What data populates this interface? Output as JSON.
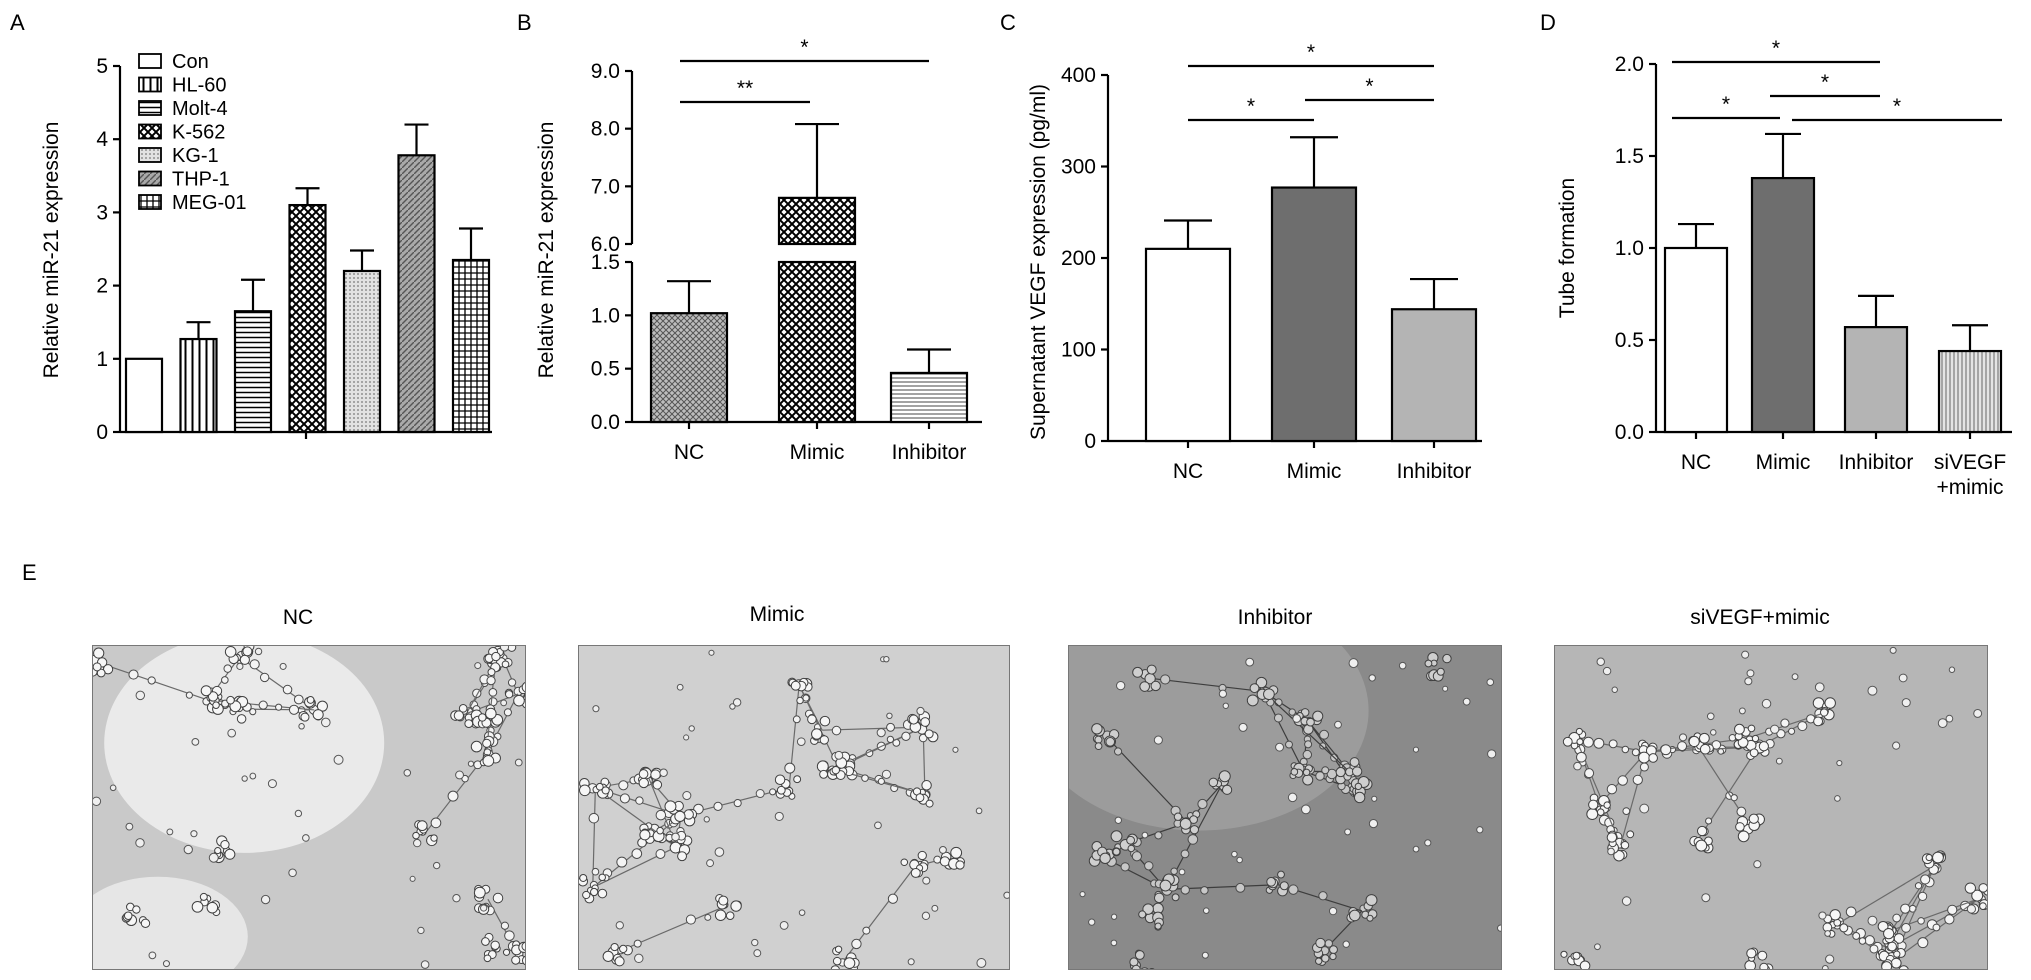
{
  "panel_letters": [
    "A",
    "B",
    "C",
    "D",
    "E"
  ],
  "chart_data": [
    {
      "panel": "A",
      "type": "bar",
      "categories": [
        "Con",
        "HL-60",
        "Molt-4",
        "K-562",
        "KG-1",
        "THP-1",
        "MEG-01"
      ],
      "values": [
        1.0,
        1.27,
        1.65,
        3.1,
        2.2,
        3.78,
        2.35
      ],
      "errors": [
        0,
        0.23,
        0.43,
        0.23,
        0.28,
        0.42,
        0.43
      ],
      "ylabel": "Relative miR-21 expression",
      "ylim": [
        0,
        5
      ],
      "yticks": [
        "0",
        "1",
        "2",
        "3",
        "4",
        "5"
      ],
      "legend": [
        "Con",
        "HL-60",
        "Molt-4",
        "K-562",
        "KG-1",
        "THP-1",
        "MEG-01"
      ],
      "legend_position": "top-left",
      "grid": false
    },
    {
      "panel": "B",
      "type": "bar",
      "categories": [
        "NC",
        "Mimic",
        "Inhibitor"
      ],
      "values": [
        1.02,
        6.8,
        0.46
      ],
      "errors": [
        0.3,
        1.28,
        0.22
      ],
      "ylabel": "Relative miR-21 expression",
      "axis_break": {
        "lower": [
          0,
          1.5
        ],
        "upper": [
          6.0,
          9.0
        ]
      },
      "yticks_lower": [
        "0.0",
        "0.5",
        "1.0",
        "1.5"
      ],
      "yticks_upper": [
        "6.0",
        "7.0",
        "8.0",
        "9.0"
      ],
      "significance": [
        {
          "from": "NC",
          "to": "Mimic",
          "label": "**"
        },
        {
          "from": "NC",
          "to": "Inhibitor",
          "label": "*"
        }
      ],
      "grid": false
    },
    {
      "panel": "C",
      "type": "bar",
      "categories": [
        "NC",
        "Mimic",
        "Inhibitor"
      ],
      "values": [
        210,
        277,
        144
      ],
      "errors": [
        31,
        55,
        33
      ],
      "ylabel": "Supernatant VEGF expression (pg/ml)",
      "ylim": [
        0,
        400
      ],
      "yticks": [
        "0",
        "100",
        "200",
        "300",
        "400"
      ],
      "significance": [
        {
          "from": "NC",
          "to": "Mimic",
          "label": "*"
        },
        {
          "from": "Mimic",
          "to": "Inhibitor",
          "label": "*"
        },
        {
          "from": "NC",
          "to": "Inhibitor",
          "label": "*"
        }
      ],
      "colors": [
        "#ffffff",
        "#6e6e6e",
        "#b4b4b4"
      ],
      "grid": false
    },
    {
      "panel": "D",
      "type": "bar",
      "categories": [
        "NC",
        "Mimic",
        "Inhibitor",
        "siVEGF\n+mimic"
      ],
      "values": [
        1.0,
        1.38,
        0.57,
        0.44
      ],
      "errors": [
        0.13,
        0.24,
        0.17,
        0.14
      ],
      "ylabel": "Tube formation",
      "ylim": [
        0,
        2.0
      ],
      "yticks": [
        "0.0",
        "0.5",
        "1.0",
        "1.5",
        "2.0"
      ],
      "significance": [
        {
          "from": "NC",
          "to": "Mimic",
          "label": "*"
        },
        {
          "from": "Mimic",
          "to": "Inhibitor",
          "label": "*"
        },
        {
          "from": "NC",
          "to": "Inhibitor",
          "label": "*"
        },
        {
          "from": "Mimic",
          "to": "siVEGF\n+mimic",
          "label": "*"
        }
      ],
      "colors": [
        "#ffffff",
        "#6e6e6e",
        "#b4b4b4",
        "#d8d8d8"
      ],
      "grid": false
    }
  ],
  "micrographs": {
    "titles": [
      "NC",
      "Mimic",
      "Inhibitor",
      "siVEGF+mimic"
    ],
    "background_colors": [
      "#c9c9c9",
      "#d0d0d0",
      "#8a8a8a",
      "#b6b6b6"
    ]
  }
}
